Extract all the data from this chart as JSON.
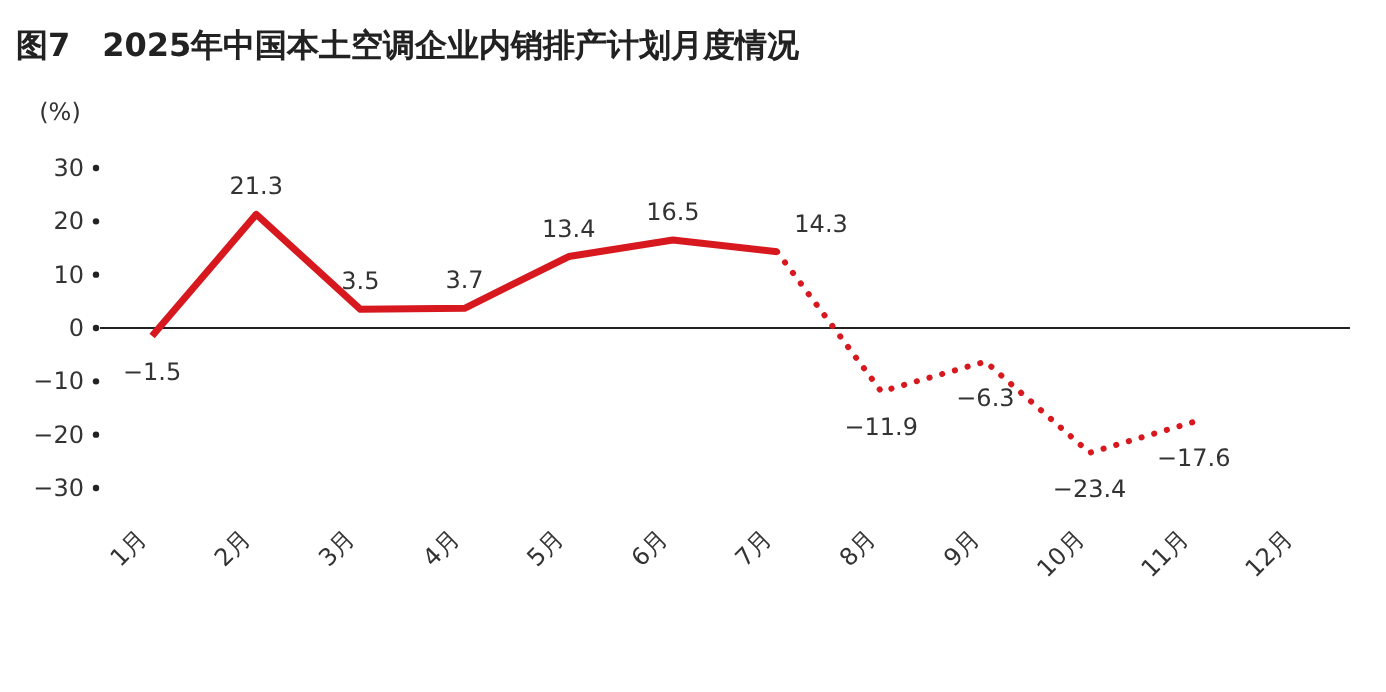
{
  "chart_data": {
    "type": "line",
    "title": "图7　2025年中国本土空调企业内销排产计划月度情况",
    "ylabel": "(%)",
    "categories": [
      "1月",
      "2月",
      "3月",
      "4月",
      "5月",
      "6月",
      "7月",
      "8月",
      "9月",
      "10月",
      "11月",
      "12月"
    ],
    "series": [
      {
        "color": "#d7191f",
        "line_style": "solid",
        "values": [
          -1.5,
          21.3,
          3.5,
          3.7,
          13.4,
          16.5,
          14.3,
          null,
          null,
          null,
          null,
          null
        ],
        "value_labels": [
          "−1.5",
          "21.3",
          "3.5",
          "3.7",
          "13.4",
          "16.5",
          "14.3",
          null,
          null,
          null,
          null,
          null
        ]
      },
      {
        "color": "#d7191f",
        "line_style": "dotted",
        "values": [
          null,
          null,
          null,
          null,
          null,
          null,
          14.3,
          -11.9,
          -6.3,
          -23.4,
          -17.6,
          null
        ],
        "value_labels": [
          null,
          null,
          null,
          null,
          null,
          null,
          null,
          "−11.9",
          "−6.3",
          "−23.4",
          "−17.6",
          null
        ]
      }
    ],
    "ylim": [
      -30,
      30
    ],
    "yticks": [
      {
        "value": -30,
        "label": "−30"
      },
      {
        "value": -20,
        "label": "−20"
      },
      {
        "value": -10,
        "label": "−10"
      },
      0,
      10,
      20,
      30
    ],
    "marker": "none"
  }
}
